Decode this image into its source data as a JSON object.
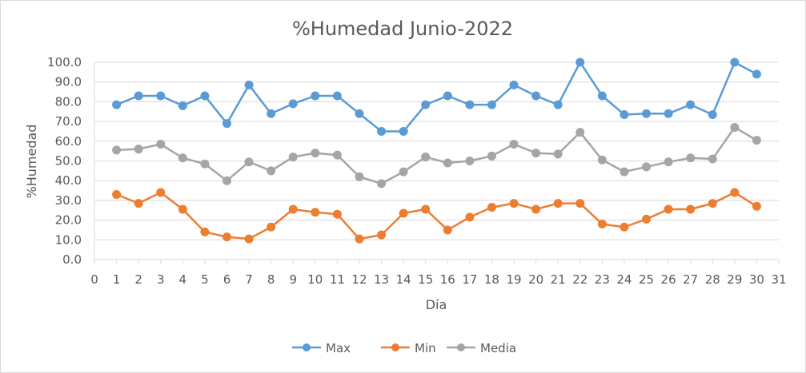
{
  "chart_data": {
    "type": "line",
    "title": "%Humedad Junio-2022",
    "xlabel": "Día",
    "ylabel": "%Humedad",
    "xlim": [
      0,
      31
    ],
    "ylim": [
      0,
      100
    ],
    "x_ticks": [
      "0",
      "1",
      "2",
      "3",
      "4",
      "5",
      "6",
      "7",
      "8",
      "9",
      "10",
      "11",
      "12",
      "13",
      "14",
      "15",
      "16",
      "17",
      "18",
      "19",
      "20",
      "21",
      "22",
      "23",
      "24",
      "25",
      "26",
      "27",
      "28",
      "29",
      "30",
      "31"
    ],
    "y_ticks": [
      "0.0",
      "10.0",
      "20.0",
      "30.0",
      "40.0",
      "50.0",
      "60.0",
      "70.0",
      "80.0",
      "90.0",
      "100.0"
    ],
    "y_tick_values": [
      0,
      10,
      20,
      30,
      40,
      50,
      60,
      70,
      80,
      90,
      100
    ],
    "grid": "horizontal",
    "legend_position": "bottom",
    "x": [
      1,
      2,
      3,
      4,
      5,
      6,
      7,
      8,
      9,
      10,
      11,
      12,
      13,
      14,
      15,
      16,
      17,
      18,
      19,
      20,
      21,
      22,
      23,
      24,
      25,
      26,
      27,
      28,
      29,
      30
    ],
    "series": [
      {
        "name": "Max",
        "color": "#5b9bd5",
        "values": [
          78.5,
          83,
          83,
          78,
          83,
          69,
          88.5,
          74,
          79,
          83,
          83,
          74,
          65,
          65,
          78.5,
          83,
          78.5,
          78.5,
          88.5,
          83,
          78.5,
          100,
          83,
          73.5,
          74,
          74,
          78.5,
          73.5,
          100,
          94
        ]
      },
      {
        "name": "Min",
        "color": "#ed7d31",
        "values": [
          33,
          28.5,
          34,
          25.5,
          14,
          11.5,
          10.5,
          16.5,
          25.5,
          24,
          23,
          10.5,
          12.5,
          23.5,
          25.5,
          15,
          21.5,
          26.5,
          28.5,
          25.5,
          28.5,
          28.5,
          18,
          16.5,
          20.5,
          25.5,
          25.5,
          28.5,
          34,
          27
        ]
      },
      {
        "name": "Media",
        "color": "#a5a5a5",
        "values": [
          55.5,
          56,
          58.5,
          51.5,
          48.5,
          40,
          49.5,
          45,
          52,
          54,
          53,
          42,
          38.5,
          44.5,
          52,
          49,
          50,
          52.5,
          58.5,
          54,
          53.5,
          64.5,
          50.5,
          44.5,
          47,
          49.5,
          51.5,
          51,
          67,
          60.5
        ]
      }
    ]
  }
}
